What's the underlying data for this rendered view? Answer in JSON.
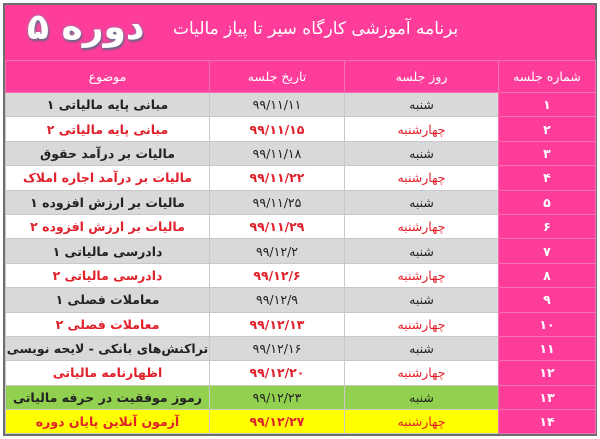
{
  "header": {
    "course": "دوره ۵",
    "title": "برنامه آموزشی کارگاه سیر تا پیاز مالیات"
  },
  "columns": {
    "number": "شماره جلسه",
    "day": "روز جلسه",
    "date": "تاریخ جلسه",
    "topic": "موضوع"
  },
  "colors": {
    "pink": "#fe3d9b",
    "gray": "#d9d9d9",
    "red": "#e0202a",
    "green": "#92d050",
    "yellow": "#ffff00"
  },
  "rows": [
    {
      "number": "۱",
      "day": "شنبه",
      "date": "۹۹/۱۱/۱۱",
      "topic": "مبانی پایه مالیاتی ۱",
      "style": "gray"
    },
    {
      "number": "۲",
      "day": "چهارشنبه",
      "date": "۹۹/۱۱/۱۵",
      "topic": "مبانی پایه مالیاتی ۲",
      "style": "white"
    },
    {
      "number": "۳",
      "day": "شنبه",
      "date": "۹۹/۱۱/۱۸",
      "topic": "مالیات بر درآمد حقوق",
      "style": "gray"
    },
    {
      "number": "۴",
      "day": "چهارشنبه",
      "date": "۹۹/۱۱/۲۲",
      "topic": "مالیات بر درآمد اجاره املاک",
      "style": "white"
    },
    {
      "number": "۵",
      "day": "شنبه",
      "date": "۹۹/۱۱/۲۵",
      "topic": "مالیات بر ارزش افزوده ۱",
      "style": "gray"
    },
    {
      "number": "۶",
      "day": "چهارشنبه",
      "date": "۹۹/۱۱/۲۹",
      "topic": "مالیات بر ارزش افزوده ۲",
      "style": "white"
    },
    {
      "number": "۷",
      "day": "شنبه",
      "date": "۹۹/۱۲/۲",
      "topic": "دادرسی مالیاتی ۱",
      "style": "gray"
    },
    {
      "number": "۸",
      "day": "چهارشنبه",
      "date": "۹۹/۱۲/۶",
      "topic": "دادرسی مالیاتی ۲",
      "style": "white"
    },
    {
      "number": "۹",
      "day": "شنبه",
      "date": "۹۹/۱۲/۹",
      "topic": "معاملات فصلی ۱",
      "style": "gray"
    },
    {
      "number": "۱۰",
      "day": "چهارشنبه",
      "date": "۹۹/۱۲/۱۳",
      "topic": "معاملات فصلی ۲",
      "style": "white"
    },
    {
      "number": "۱۱",
      "day": "شنبه",
      "date": "۹۹/۱۲/۱۶",
      "topic": "تراکنش‌های بانکی - لایحه نویسی",
      "style": "gray"
    },
    {
      "number": "۱۲",
      "day": "چهارشنبه",
      "date": "۹۹/۱۲/۲۰",
      "topic": "اظهارنامه مالیاتی",
      "style": "white"
    },
    {
      "number": "۱۳",
      "day": "شنبه",
      "date": "۹۹/۱۲/۲۳",
      "topic": "رموز موفقیت در حرفه مالیاتی",
      "style": "green"
    },
    {
      "number": "۱۴",
      "day": "چهارشنبه",
      "date": "۹۹/۱۲/۲۷",
      "topic": "آزمون آنلاین پایان دوره",
      "style": "yellow"
    }
  ]
}
